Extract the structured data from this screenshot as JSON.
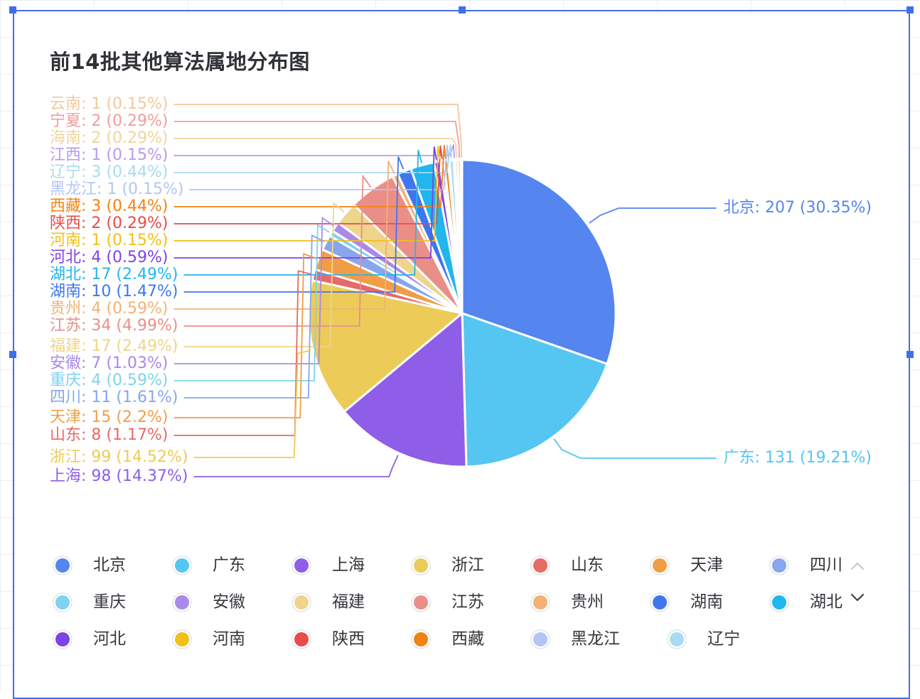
{
  "chart_data": {
    "type": "pie",
    "title": "前14批其他算法属地分布图",
    "categories": [
      "北京",
      "广东",
      "上海",
      "浙江",
      "山东",
      "天津",
      "四川",
      "重庆",
      "安徽",
      "福建",
      "江苏",
      "贵州",
      "湖南",
      "湖北",
      "河北",
      "河南",
      "陕西",
      "西藏",
      "黑龙江",
      "辽宁",
      "江西",
      "海南",
      "宁夏",
      "云南"
    ],
    "values": [
      207,
      131,
      98,
      99,
      8,
      15,
      11,
      4,
      7,
      17,
      34,
      4,
      10,
      17,
      4,
      1,
      2,
      3,
      1,
      3,
      1,
      2,
      2,
      1
    ],
    "percent_labels": [
      "30.35%",
      "19.21%",
      "14.37%",
      "14.52%",
      "1.17%",
      "2.2%",
      "1.61%",
      "0.59%",
      "1.03%",
      "2.49%",
      "4.99%",
      "0.59%",
      "1.47%",
      "2.49%",
      "0.59%",
      "0.15%",
      "0.29%",
      "0.44%",
      "0.15%",
      "0.44%",
      "0.15%",
      "0.29%",
      "0.29%",
      "0.15%"
    ],
    "colors": [
      "#5585ee",
      "#55c6f1",
      "#8e5ee8",
      "#eccb58",
      "#e56a68",
      "#f09e45",
      "#87a6ec",
      "#7fd2f0",
      "#a989ea",
      "#eed58b",
      "#ea8e88",
      "#f3b273",
      "#3f76ee",
      "#21b6ee",
      "#7c43e6",
      "#f1c019",
      "#e84c4c",
      "#f08413",
      "#b3c5f5",
      "#a8dcf0",
      "#b79af0",
      "#efd69c",
      "#ef9e9c",
      "#f3c89c"
    ],
    "display_labels": [
      "北京: 207 (30.35%)",
      "广东: 131 (19.21%)",
      "上海: 98 (14.37%)",
      "浙江: 99 (14.52%)",
      "山东: 8 (1.17%)",
      "天津: 15 (2.2%)",
      "四川: 11 (1.61%)",
      "重庆: 4 (0.59%)",
      "安徽: 7 (1.03%)",
      "福建: 17 (2.49%)",
      "江苏: 34 (4.99%)",
      "贵州: 4 (0.59%)",
      "湖南: 10 (1.47%)",
      "湖北: 17 (2.49%)",
      "河北: 4 (0.59%)",
      "河南: 1 (0.15%)",
      "陕西: 2 (0.29%)",
      "西藏: 3 (0.44%)",
      "黑龙江: 1 (0.15%)",
      "辽宁: 3 (0.44%)",
      "江西: 1 (0.15%)",
      "海南: 2 (0.29%)",
      "宁夏: 2 (0.29%)",
      "云南: 1 (0.15%)"
    ],
    "legend_visible": [
      "北京",
      "广东",
      "上海",
      "浙江",
      "山东",
      "天津",
      "四川",
      "重庆",
      "安徽",
      "福建",
      "江苏",
      "贵州",
      "湖南",
      "湖北",
      "河北",
      "河南",
      "陕西",
      "西藏",
      "黑龙江",
      "辽宁"
    ],
    "legend_placement": "bottom",
    "legend_paged": true
  },
  "legend_controls": {
    "up_icon": "chevron-up-icon",
    "down_icon": "chevron-down-icon"
  },
  "theme": {
    "frame_color": "#3f6fea",
    "title_color": "#2f3237",
    "legend_text_color": "#33363b"
  }
}
